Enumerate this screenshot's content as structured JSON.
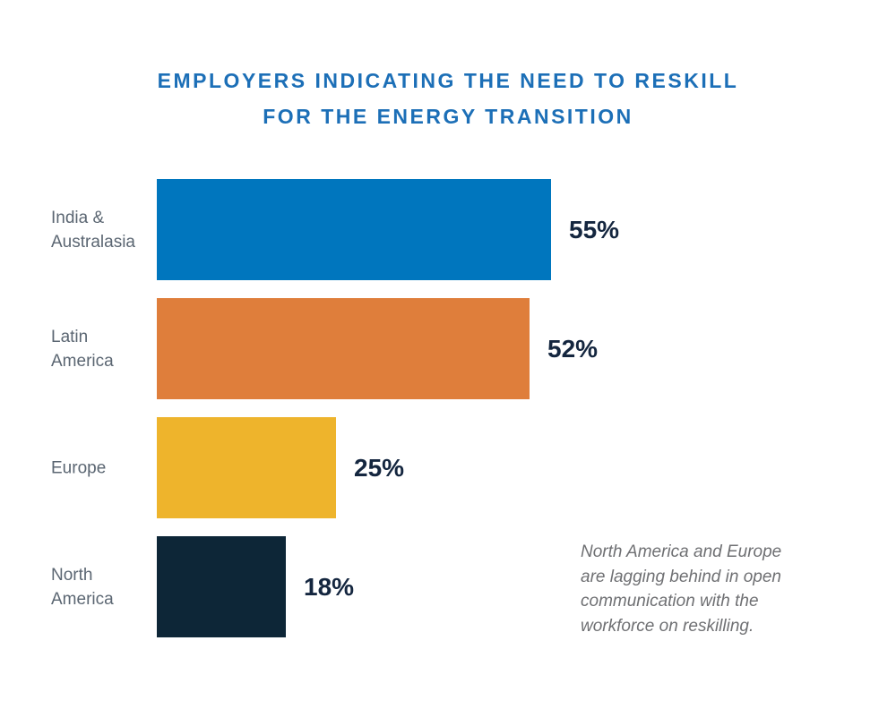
{
  "chart_data": {
    "type": "bar",
    "orientation": "horizontal",
    "title_lines": [
      "EMPLOYERS INDICATING THE NEED TO RESKILL",
      "FOR THE ENERGY TRANSITION"
    ],
    "categories": [
      "India & Australasia",
      "Latin America",
      "Europe",
      "North America"
    ],
    "values": [
      55,
      52,
      25,
      18
    ],
    "value_labels": [
      "55%",
      "52%",
      "25%",
      "18%"
    ],
    "bar_colors": [
      "#0076BE",
      "#DF7E3B",
      "#EEB42C",
      "#0D2637"
    ],
    "xlim": [
      0,
      100
    ],
    "grid": false,
    "legend": "none",
    "annotation": "North America and Europe are lagging behind in open communication with the workforce on reskilling."
  },
  "colors": {
    "title": "#1C6FB7",
    "category_label": "#5B6672",
    "value_label": "#14263F",
    "annotation": "#6F7073",
    "background": "#FFFFFF"
  }
}
